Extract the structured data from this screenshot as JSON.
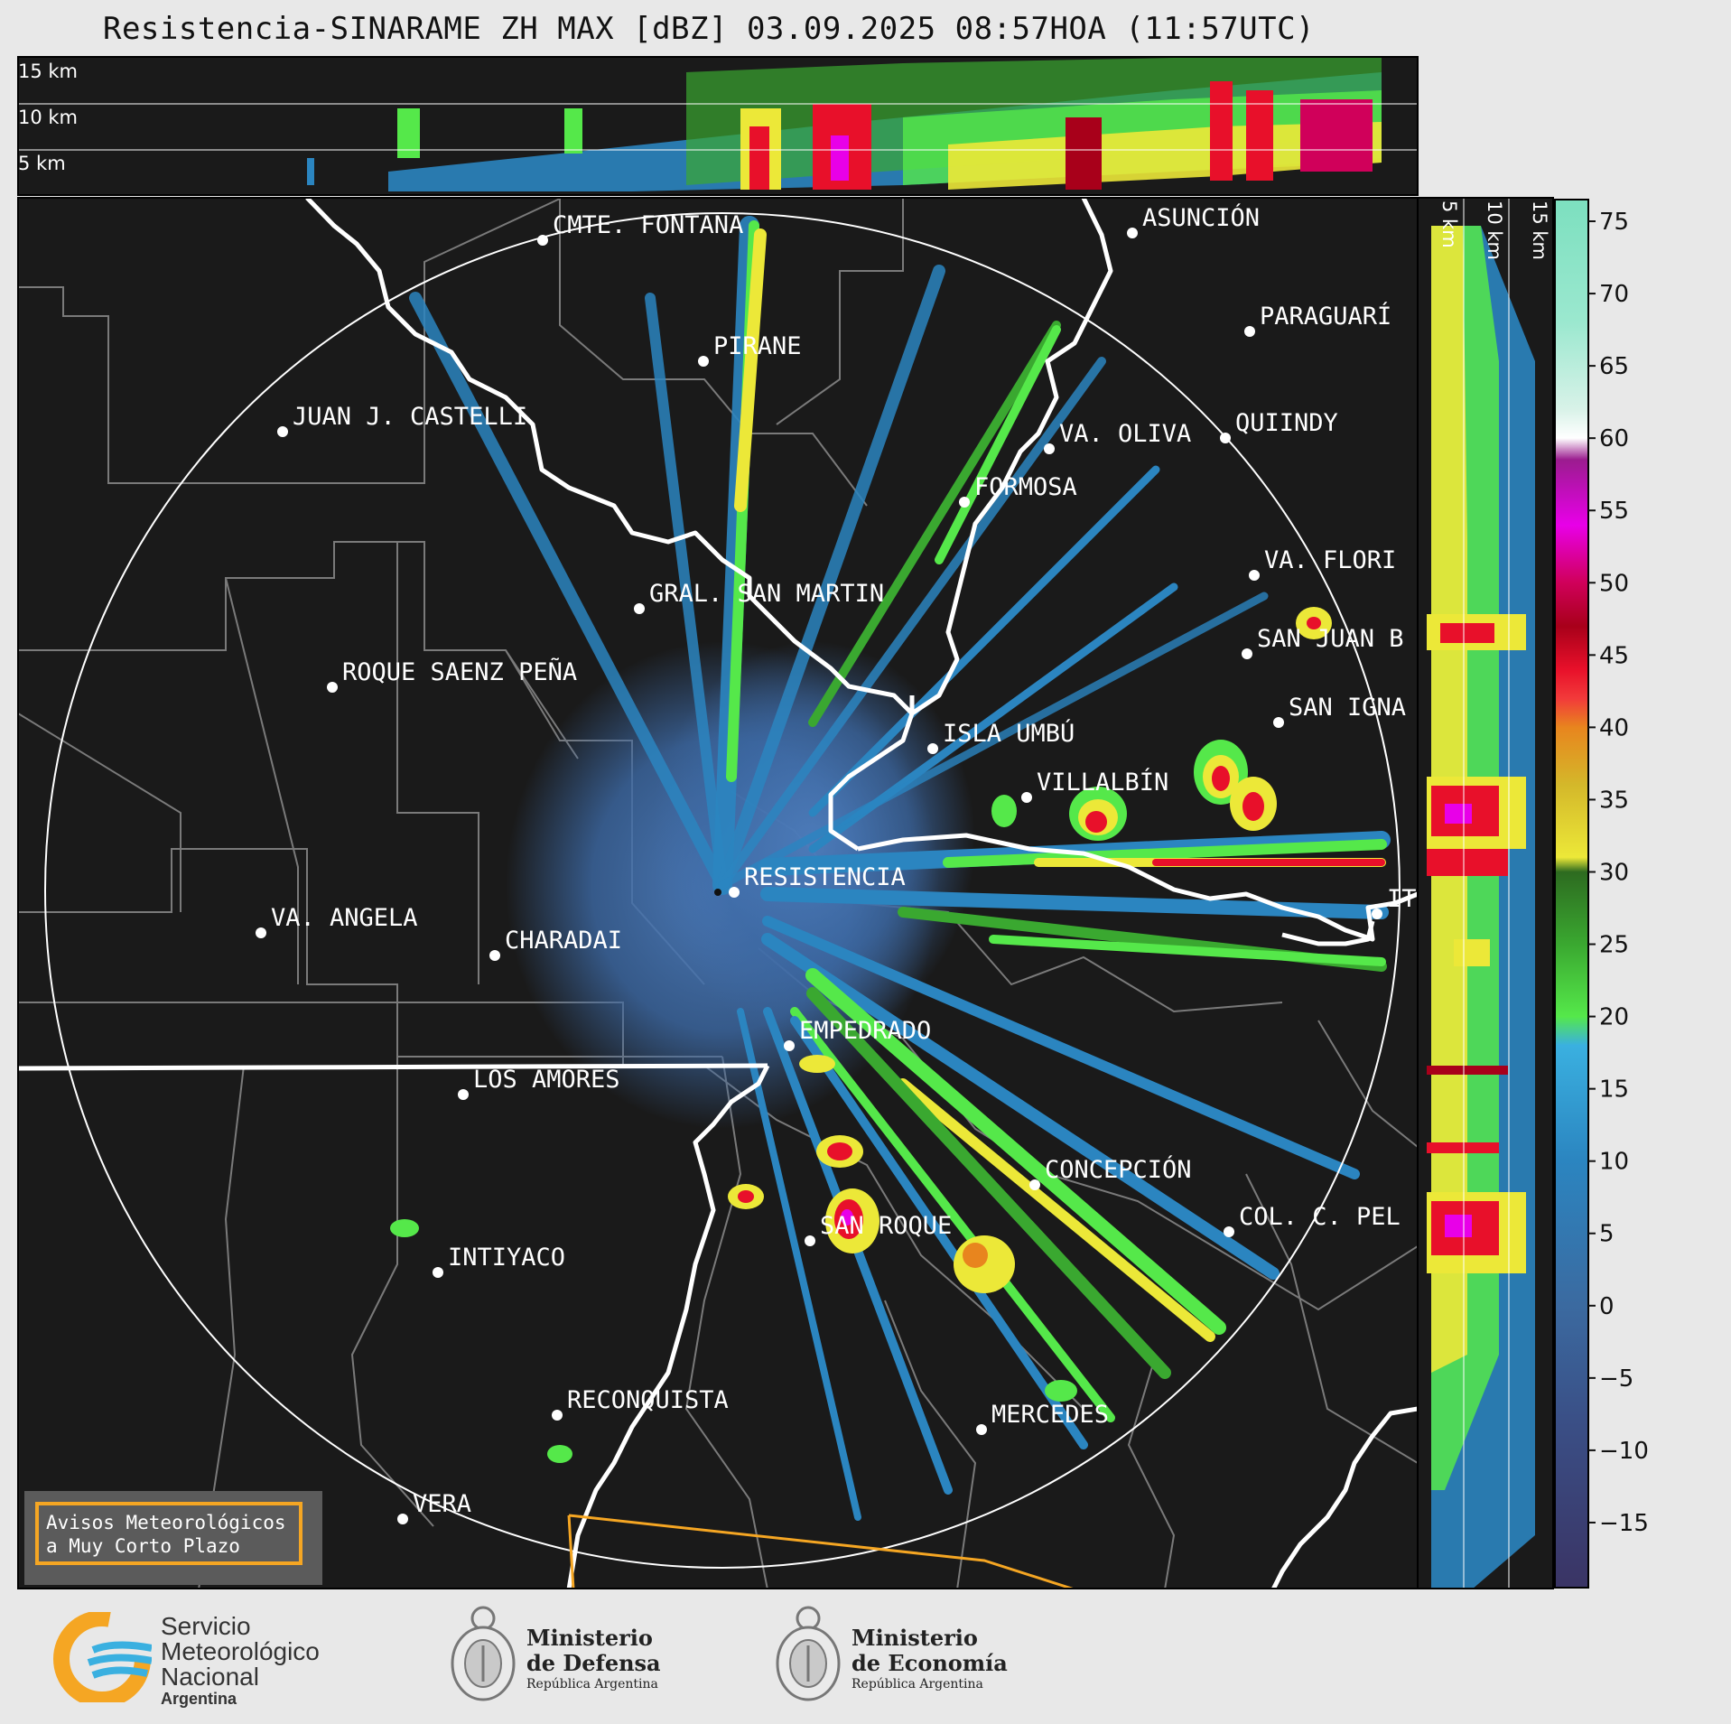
{
  "header": {
    "title": "Resistencia-SINARAME ZH MAX [dBZ] 03.09.2025 08:57HOA (11:57UTC)"
  },
  "top_panel": {
    "altitude_labels": [
      "15 km",
      "10 km",
      "5 km"
    ]
  },
  "side_panel": {
    "altitude_labels": [
      "5 km",
      "10 km",
      "15 km"
    ]
  },
  "colorbar": {
    "unit": "dBZ",
    "ticks": [
      "75",
      "70",
      "65",
      "60",
      "55",
      "50",
      "45",
      "40",
      "35",
      "30",
      "25",
      "20",
      "15",
      "10",
      "5",
      "0",
      "−5",
      "−10",
      "−15"
    ],
    "stops": [
      {
        "value": 76,
        "color": "#7ee0c0"
      },
      {
        "value": 68,
        "color": "#9be8cf"
      },
      {
        "value": 62,
        "color": "#d8f2e8"
      },
      {
        "value": 60,
        "color": "#ffffff"
      },
      {
        "value": 58.5,
        "color": "#9b1c8f"
      },
      {
        "value": 54,
        "color": "#e800e8"
      },
      {
        "value": 50,
        "color": "#d0005a"
      },
      {
        "value": 47,
        "color": "#a8001a"
      },
      {
        "value": 44,
        "color": "#e8102a"
      },
      {
        "value": 42,
        "color": "#f23a3a"
      },
      {
        "value": 40,
        "color": "#e8851e"
      },
      {
        "value": 36,
        "color": "#d4b82a"
      },
      {
        "value": 31,
        "color": "#ece838"
      },
      {
        "value": 30,
        "color": "#2d6b20"
      },
      {
        "value": 25,
        "color": "#3aa830"
      },
      {
        "value": 20,
        "color": "#55e84a"
      },
      {
        "value": 18,
        "color": "#3ab0e0"
      },
      {
        "value": 10,
        "color": "#2b85c0"
      },
      {
        "value": 0,
        "color": "#3b6aa0"
      },
      {
        "value": -8,
        "color": "#3a4f86"
      },
      {
        "value": -19,
        "color": "#3a3566"
      }
    ]
  },
  "cities": [
    {
      "name": "CMTE. FONTANA"
    },
    {
      "name": "ASUNCIÓN"
    },
    {
      "name": "PARAGUARÍ"
    },
    {
      "name": "PIRANE"
    },
    {
      "name": "JUAN J. CASTELLI"
    },
    {
      "name": "VA. OLIVA"
    },
    {
      "name": "QUIINDY"
    },
    {
      "name": "FORMOSA"
    },
    {
      "name": "VA. FLORI"
    },
    {
      "name": "GRAL. SAN MARTIN"
    },
    {
      "name": "SAN JUAN B"
    },
    {
      "name": "ROQUE SAENZ PEÑA"
    },
    {
      "name": "SAN IGNA"
    },
    {
      "name": "ISLA UMBÚ"
    },
    {
      "name": "VILLALBÍN"
    },
    {
      "name": "RESISTENCIA"
    },
    {
      "name": "VA. ANGELA"
    },
    {
      "name": "CHARADAI"
    },
    {
      "name": "IT"
    },
    {
      "name": "EMPEDRADO"
    },
    {
      "name": "LOS AMORES"
    },
    {
      "name": "CONCEPCIÓN"
    },
    {
      "name": "COL. C. PEL"
    },
    {
      "name": "INTIYACO"
    },
    {
      "name": "SAN ROQUE"
    },
    {
      "name": "RECONQUISTA"
    },
    {
      "name": "MERCEDES"
    },
    {
      "name": "VERA"
    }
  ],
  "warning_box": {
    "line1": "Avisos Meteorológicos",
    "line2": "a Muy Corto Plazo"
  },
  "footer": {
    "smn": {
      "line1": "Servicio",
      "line2": "Meteorológico",
      "line3": "Nacional",
      "line4": "Argentina"
    },
    "defensa": {
      "line1": "Ministerio",
      "line2": "de Defensa",
      "line3": "República Argentina"
    },
    "economia": {
      "line1": "Ministerio",
      "line2": "de Economía",
      "line3": "República Argentina"
    }
  }
}
